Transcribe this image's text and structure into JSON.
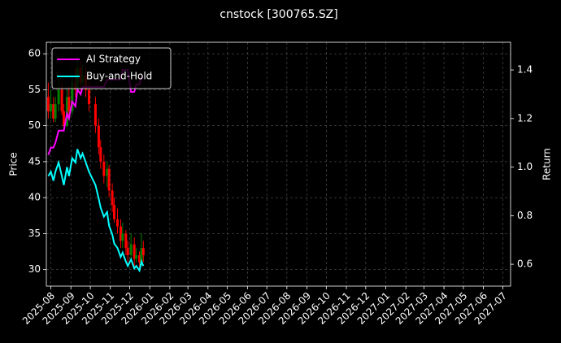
{
  "chart_data": {
    "type": "candlestick",
    "title": "cnstock [300765.SZ]",
    "y_label": "Price",
    "y2_label": "Return",
    "x": [
      "2025-07-28",
      "2025-08-01",
      "2025-08-05",
      "2025-08-08",
      "2025-08-13",
      "2025-08-18",
      "2025-08-21",
      "2025-08-26",
      "2025-08-29",
      "2025-09-03",
      "2025-09-08",
      "2025-09-11",
      "2025-09-16",
      "2025-09-19",
      "2025-09-24",
      "2025-09-29",
      "2025-10-09",
      "2025-10-14",
      "2025-10-17",
      "2025-10-22",
      "2025-10-27",
      "2025-10-30",
      "2025-11-04",
      "2025-11-07",
      "2025-11-12",
      "2025-11-17",
      "2025-11-20",
      "2025-11-25",
      "2025-11-28",
      "2025-12-03",
      "2025-12-08",
      "2025-12-11",
      "2025-12-16",
      "2025-12-19",
      "2025-12-22"
    ],
    "open": [
      54,
      52,
      53,
      51,
      53,
      55,
      52,
      50,
      54,
      52,
      56,
      55,
      58,
      56,
      57,
      55,
      53,
      50,
      47,
      45,
      43,
      44,
      41,
      39,
      37,
      36,
      34,
      35,
      33,
      32,
      33.5,
      31.5,
      32,
      31,
      33
    ],
    "close": [
      52,
      53,
      51,
      53,
      55,
      52,
      50,
      54,
      52,
      56,
      55,
      58,
      56,
      57,
      55,
      53,
      50,
      47,
      45,
      43,
      44,
      41,
      39,
      37,
      36,
      34,
      35,
      33,
      32,
      33.5,
      31.5,
      32,
      31,
      33,
      32
    ],
    "high": [
      56,
      55,
      54,
      54,
      56.5,
      56,
      53,
      55,
      55.5,
      57,
      58,
      59.5,
      59,
      58.5,
      58,
      56,
      54,
      51,
      48,
      46,
      45,
      44.5,
      42,
      40,
      38.5,
      37,
      36.5,
      35.5,
      34,
      35,
      34.5,
      33,
      32.5,
      35,
      34
    ],
    "low": [
      51,
      51,
      50.5,
      50.5,
      52,
      51.5,
      49.5,
      49.8,
      51,
      51.5,
      54,
      54.5,
      55,
      55,
      54,
      52,
      49,
      46,
      44,
      42,
      41.5,
      40,
      38,
      36.5,
      35,
      33,
      33,
      32,
      31,
      31.5,
      30.5,
      31,
      30,
      30.5,
      31
    ],
    "up_color": "#008000",
    "down_color": "#ff0000",
    "series": [
      {
        "name": "AI Strategy",
        "color": "#ff00ff",
        "axis": "y2",
        "values": [
          1.05,
          1.08,
          1.08,
          1.1,
          1.15,
          1.15,
          1.15,
          1.22,
          1.2,
          1.27,
          1.25,
          1.32,
          1.3,
          1.33,
          1.33,
          1.33,
          1.33,
          1.33,
          1.33,
          1.33,
          1.36,
          1.36,
          1.36,
          1.36,
          1.36,
          1.36,
          1.4,
          1.4,
          1.4,
          1.31,
          1.31,
          1.34,
          1.34,
          1.37,
          1.37
        ]
      },
      {
        "name": "Buy-and-Hold",
        "color": "#00ffff",
        "axis": "y2",
        "values": [
          0.963,
          0.981,
          0.944,
          0.981,
          1.019,
          0.963,
          0.926,
          1.0,
          0.963,
          1.037,
          1.019,
          1.074,
          1.037,
          1.056,
          1.019,
          0.981,
          0.926,
          0.87,
          0.833,
          0.796,
          0.815,
          0.759,
          0.722,
          0.685,
          0.667,
          0.63,
          0.648,
          0.611,
          0.593,
          0.62,
          0.583,
          0.593,
          0.574,
          0.611,
          0.593
        ]
      }
    ],
    "xlim": [
      "2025-07-25",
      "2027-07-13"
    ],
    "xticks": [
      "2025-08",
      "2025-09",
      "2025-10",
      "2025-11",
      "2025-12",
      "2026-01",
      "2026-02",
      "2026-03",
      "2026-04",
      "2026-05",
      "2026-06",
      "2026-07",
      "2026-08",
      "2026-09",
      "2026-10",
      "2026-11",
      "2026-12",
      "2027-01",
      "2027-02",
      "2027-03",
      "2027-04",
      "2027-05",
      "2027-06",
      "2027-07"
    ],
    "ylim": [
      27.7,
      61.6
    ],
    "yticks": [
      30,
      35,
      40,
      45,
      50,
      55,
      60
    ],
    "y2lim": [
      0.51,
      1.514
    ],
    "y2ticks": [
      0.6,
      0.8,
      {
        "value": 1,
        "label": "1.0"
      },
      1.2,
      1.4
    ],
    "grid": true,
    "legend": "upper left"
  }
}
